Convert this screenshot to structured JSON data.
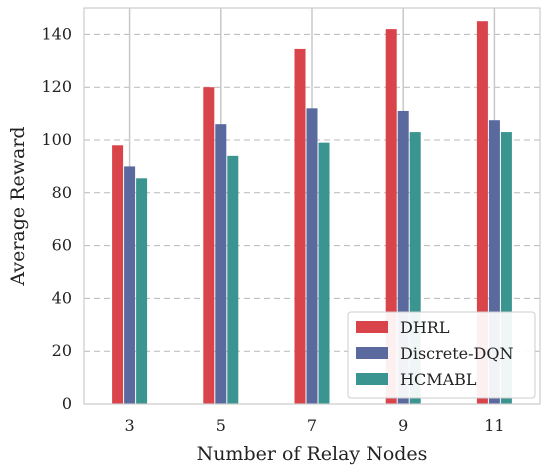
{
  "chart_data": {
    "type": "bar",
    "xlabel": "Number of Relay Nodes",
    "ylabel": "Average Reward",
    "categories": [
      "3",
      "5",
      "7",
      "9",
      "11"
    ],
    "ylim": [
      0,
      150
    ],
    "yticks": [
      0,
      20,
      40,
      60,
      80,
      100,
      120,
      140
    ],
    "grid": "y-dashed",
    "legend_position": "bottom-right",
    "series": [
      {
        "name": "DHRL",
        "color": "#d9434a",
        "values": [
          98,
          120,
          134.5,
          142,
          145
        ]
      },
      {
        "name": "Discrete-DQN",
        "color": "#5a6a9e",
        "values": [
          90,
          106,
          112,
          111,
          107.5
        ]
      },
      {
        "name": "HCMABL",
        "color": "#3a9590",
        "values": [
          85.5,
          94,
          99,
          103,
          103
        ]
      }
    ]
  }
}
